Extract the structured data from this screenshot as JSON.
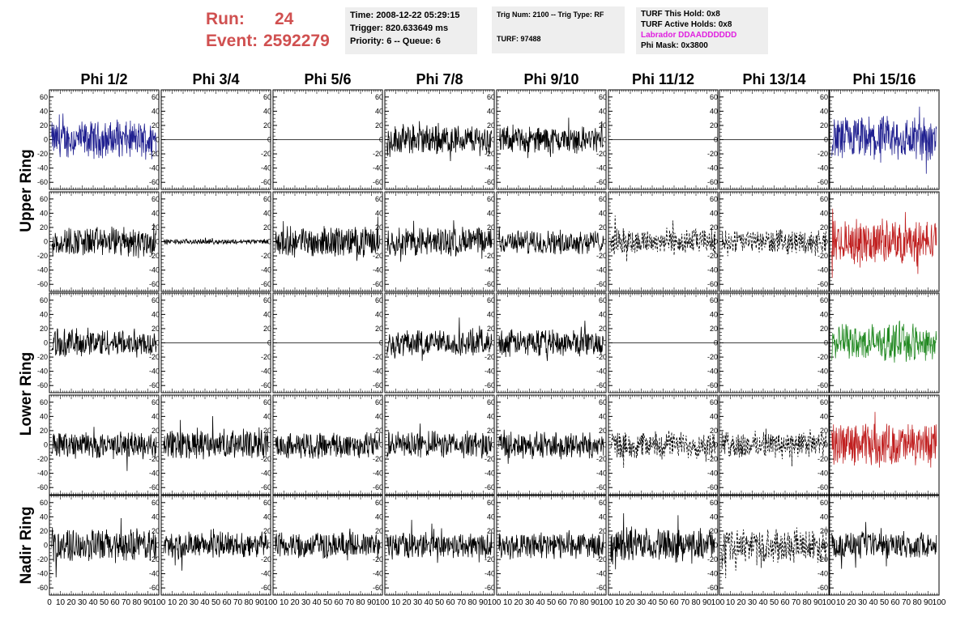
{
  "header": {
    "run_label": "Run:",
    "run_value": "24",
    "event_label": "Event:",
    "event_value": "2592279",
    "box1": [
      "Time: 2008-12-22 05:29:15",
      "Trigger: 820.633649 ms",
      "Priority: 6 -- Queue: 6"
    ],
    "box2": [
      "Trig Num: 2100 -- Trig Type: RF",
      "TURF: 97488"
    ],
    "box3": [
      "TURF This Hold: 0x8",
      "TURF Active Holds: 0x8"
    ],
    "box3_labrador": "Labrador DDAADDDDDD",
    "box3_phimask": "Phi Mask: 0x3800",
    "colors": {
      "run_text": "#d05050",
      "labrador": "#e020e0",
      "box_bg": "#eeeeee"
    }
  },
  "chart_data": {
    "type": "line",
    "columns": [
      "Phi 1/2",
      "Phi 3/4",
      "Phi 5/6",
      "Phi 7/8",
      "Phi 9/10",
      "Phi 11/12",
      "Phi 13/14",
      "Phi 15/16"
    ],
    "rings": [
      "Upper Ring",
      "Lower Ring",
      "Nadir Ring"
    ],
    "ylim": [
      -70,
      70
    ],
    "yticks": [
      -60,
      -40,
      -20,
      0,
      20,
      40,
      60
    ],
    "xlim": [
      0,
      100
    ],
    "xticks": [
      0,
      10,
      20,
      30,
      40,
      50,
      60,
      70,
      80,
      90,
      100
    ],
    "colors": {
      "black": "#000000",
      "blue": "#202090",
      "red": "#c02020",
      "green": "#208820"
    },
    "rows": [
      {
        "ring": "Upper Ring",
        "panels": [
          {
            "amp": 22,
            "color": "blue"
          },
          {
            "amp": 0,
            "color": "black"
          },
          {
            "amp": 0,
            "color": "black"
          },
          {
            "amp": 18,
            "color": "black"
          },
          {
            "amp": 16,
            "color": "black"
          },
          {
            "amp": 0,
            "color": "black"
          },
          {
            "amp": 0,
            "color": "black"
          },
          {
            "amp": 28,
            "color": "blue"
          }
        ]
      },
      {
        "ring": "Upper Ring",
        "panels": [
          {
            "amp": 18,
            "color": "black"
          },
          {
            "amp": 3,
            "color": "black"
          },
          {
            "amp": 18,
            "color": "black"
          },
          {
            "amp": 18,
            "color": "black"
          },
          {
            "amp": 14,
            "color": "black"
          },
          {
            "amp": 16,
            "color": "black",
            "dashed": true
          },
          {
            "amp": 14,
            "color": "black",
            "dashed": true
          },
          {
            "amp": 26,
            "color": "red"
          }
        ]
      },
      {
        "ring": "Lower Ring",
        "panels": [
          {
            "amp": 17,
            "color": "black"
          },
          {
            "amp": 0,
            "color": "black"
          },
          {
            "amp": 0,
            "color": "black"
          },
          {
            "amp": 16,
            "color": "black"
          },
          {
            "amp": 16,
            "color": "black"
          },
          {
            "amp": 0,
            "color": "black"
          },
          {
            "amp": 0,
            "color": "black"
          },
          {
            "amp": 22,
            "color": "green"
          }
        ]
      },
      {
        "ring": "Lower Ring",
        "panels": [
          {
            "amp": 16,
            "color": "black"
          },
          {
            "amp": 18,
            "color": "black"
          },
          {
            "amp": 16,
            "color": "black"
          },
          {
            "amp": 16,
            "color": "black"
          },
          {
            "amp": 16,
            "color": "black"
          },
          {
            "amp": 16,
            "color": "black",
            "dashed": true
          },
          {
            "amp": 16,
            "color": "black",
            "dashed": true
          },
          {
            "amp": 26,
            "color": "red"
          }
        ]
      },
      {
        "ring": "Nadir Ring",
        "panels": [
          {
            "amp": 20,
            "color": "black"
          },
          {
            "amp": 16,
            "color": "black"
          },
          {
            "amp": 16,
            "color": "black"
          },
          {
            "amp": 16,
            "color": "black"
          },
          {
            "amp": 16,
            "color": "black"
          },
          {
            "amp": 20,
            "color": "black"
          },
          {
            "amp": 20,
            "color": "black",
            "dashed": true
          },
          {
            "amp": 16,
            "color": "black"
          }
        ]
      }
    ]
  }
}
